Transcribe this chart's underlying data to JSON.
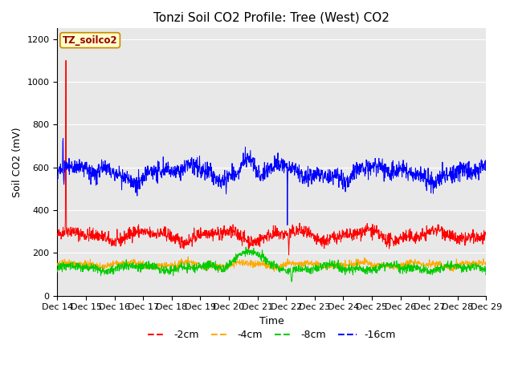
{
  "title": "Tonzi Soil CO2 Profile: Tree (West) CO2",
  "xlabel": "Time",
  "ylabel": "Soil CO2 (mV)",
  "ylim": [
    0,
    1250
  ],
  "yticks": [
    0,
    200,
    400,
    600,
    800,
    1000,
    1200
  ],
  "legend_label": "TZ_soilco2",
  "series_labels": [
    "-2cm",
    "-4cm",
    "-8cm",
    "-16cm"
  ],
  "series_colors": [
    "#ff0000",
    "#ffaa00",
    "#00cc00",
    "#0000ff"
  ],
  "x_start_day": 14,
  "x_end_day": 29,
  "x_tick_days": [
    14,
    15,
    16,
    17,
    18,
    19,
    20,
    21,
    22,
    23,
    24,
    25,
    26,
    27,
    28,
    29
  ],
  "x_tick_labels": [
    "Dec 14",
    "Dec 15",
    "Dec 16",
    "Dec 17",
    "Dec 18",
    "Dec 19",
    "Dec 20",
    "Dec 21",
    "Dec 22",
    "Dec 23",
    "Dec 24",
    "Dec 25",
    "Dec 26",
    "Dec 27",
    "Dec 28",
    "Dec 29"
  ],
  "n_points": 1500,
  "fig_bg_color": "#ffffff",
  "plot_bg_color": "#e8e8e8",
  "grid_color": "#ffffff",
  "title_fontsize": 11,
  "axis_label_fontsize": 9,
  "tick_fontsize": 8,
  "legend_fontsize": 9
}
